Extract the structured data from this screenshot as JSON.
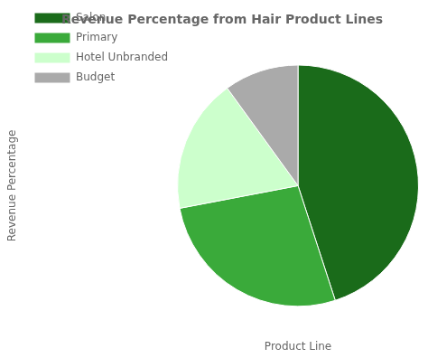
{
  "chart_data": {
    "type": "pie",
    "title": "Revenue Percentage from Hair Product Lines",
    "categories": [
      "Salon",
      "Primary",
      "Hotel Unbranded",
      "Budget"
    ],
    "values": [
      45,
      27,
      18,
      10
    ],
    "colors": [
      "#1a6b1a",
      "#3aaa3a",
      "#ccffcc",
      "#aaaaaa"
    ],
    "xlabel": "Product Line",
    "ylabel": "Revenue Percentage",
    "legend": "upper left"
  }
}
